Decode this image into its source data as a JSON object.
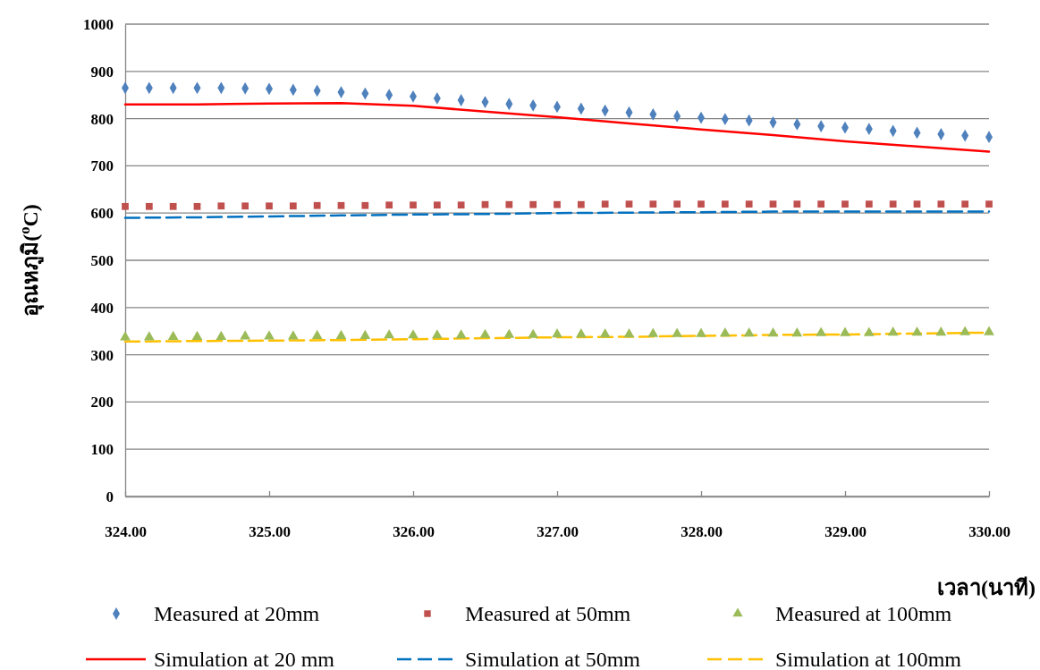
{
  "chart_data": {
    "type": "line",
    "xlabel": "เวลา(นาที)",
    "ylabel": "อุณหภูมิ($^{o}$C)",
    "xlim": [
      324,
      330
    ],
    "xticks": [
      {
        "value": 324,
        "label": "324.00"
      },
      {
        "value": 325,
        "label": "325.00"
      },
      {
        "value": 326,
        "label": "326.00"
      },
      {
        "value": 327,
        "label": "327.00"
      },
      {
        "value": 328,
        "label": "328.00"
      },
      {
        "value": 329,
        "label": "329.00"
      },
      {
        "value": 330,
        "label": "330.00"
      }
    ],
    "ylim": [
      0,
      1000
    ],
    "yticks": [
      0,
      100,
      200,
      300,
      400,
      500,
      600,
      700,
      800,
      900,
      1000
    ],
    "grid": "y",
    "legend": "bottom",
    "series": [
      {
        "name": "Measured at 20mm",
        "type": "scatter",
        "marker": "diamond",
        "color": "#4f81bd",
        "x": [
          324,
          324.1667,
          324.3333,
          324.5,
          324.6667,
          324.8333,
          325,
          325.1667,
          325.3333,
          325.5,
          325.6667,
          325.8333,
          326,
          326.1667,
          326.3333,
          326.5,
          326.6667,
          326.8333,
          327,
          327.1667,
          327.3333,
          327.5,
          327.6667,
          327.8333,
          328,
          328.1667,
          328.3333,
          328.5,
          328.6667,
          328.8333,
          329,
          329.1667,
          329.3333,
          329.5,
          329.6667,
          329.8333,
          330
        ],
        "values": [
          865,
          865,
          865,
          865,
          865,
          864,
          863,
          861,
          859,
          856,
          853,
          850,
          847,
          843,
          839,
          835,
          831,
          828,
          825,
          821,
          817,
          813,
          809,
          805,
          802,
          799,
          796,
          792,
          788,
          784,
          781,
          778,
          774,
          770,
          767,
          764,
          761
        ]
      },
      {
        "name": "Measured at 50mm",
        "type": "scatter",
        "marker": "square",
        "color": "#c0504d",
        "x": [
          324,
          324.1667,
          324.3333,
          324.5,
          324.6667,
          324.8333,
          325,
          325.1667,
          325.3333,
          325.5,
          325.6667,
          325.8333,
          326,
          326.1667,
          326.3333,
          326.5,
          326.6667,
          326.8333,
          327,
          327.1667,
          327.3333,
          327.5,
          327.6667,
          327.8333,
          328,
          328.1667,
          328.3333,
          328.5,
          328.6667,
          328.8333,
          329,
          329.1667,
          329.3333,
          329.5,
          329.6667,
          329.8333,
          330
        ],
        "values": [
          614,
          614,
          614,
          614,
          615,
          615,
          615,
          615,
          616,
          616,
          616,
          617,
          617,
          617,
          617,
          618,
          618,
          618,
          618,
          618,
          619,
          619,
          619,
          619,
          619,
          619,
          619,
          619,
          619,
          619,
          619,
          619,
          619,
          619,
          619,
          619,
          619
        ]
      },
      {
        "name": "Measured at 100mm",
        "type": "scatter",
        "marker": "triangle",
        "color": "#9bbb59",
        "x": [
          324,
          324.1667,
          324.3333,
          324.5,
          324.6667,
          324.8333,
          325,
          325.1667,
          325.3333,
          325.5,
          325.6667,
          325.8333,
          326,
          326.1667,
          326.3333,
          326.5,
          326.6667,
          326.8333,
          327,
          327.1667,
          327.3333,
          327.5,
          327.6667,
          327.8333,
          328,
          328.1667,
          328.3333,
          328.5,
          328.6667,
          328.8333,
          329,
          329.1667,
          329.3333,
          329.5,
          329.6667,
          329.8333,
          330
        ],
        "values": [
          337,
          337,
          338,
          338,
          338,
          339,
          339,
          339,
          340,
          340,
          340,
          341,
          341,
          341,
          341,
          342,
          342,
          342,
          343,
          343,
          343,
          343,
          344,
          344,
          344,
          345,
          345,
          345,
          345,
          346,
          346,
          346,
          347,
          347,
          347,
          348,
          348
        ]
      },
      {
        "name": "Simulation at 20 mm",
        "line_style": "solid",
        "color": "#ff0000",
        "x": [
          324,
          324.5,
          325,
          325.5,
          326,
          326.5,
          327,
          327.5,
          328,
          328.5,
          329,
          329.5,
          330
        ],
        "values": [
          830,
          830,
          832,
          833,
          827,
          815,
          803,
          790,
          777,
          765,
          752,
          741,
          730
        ]
      },
      {
        "name": "Simulation at 50mm",
        "line_style": "dashed",
        "color": "#0070c0",
        "x": [
          324,
          324.5,
          325,
          325.5,
          326,
          326.5,
          327,
          327.5,
          328,
          328.5,
          329,
          329.5,
          330
        ],
        "values": [
          590,
          591,
          593,
          595,
          597,
          598,
          600,
          601,
          602,
          603,
          603,
          603,
          603
        ]
      },
      {
        "name": "Simulation at 100mm",
        "line_style": "dashed",
        "color": "#ffc000",
        "x": [
          324,
          324.5,
          325,
          325.5,
          326,
          326.5,
          327,
          327.5,
          328,
          328.5,
          329,
          329.5,
          330
        ],
        "values": [
          328,
          329,
          330,
          331,
          333,
          335,
          337,
          338,
          340,
          342,
          343,
          345,
          347
        ]
      }
    ]
  }
}
